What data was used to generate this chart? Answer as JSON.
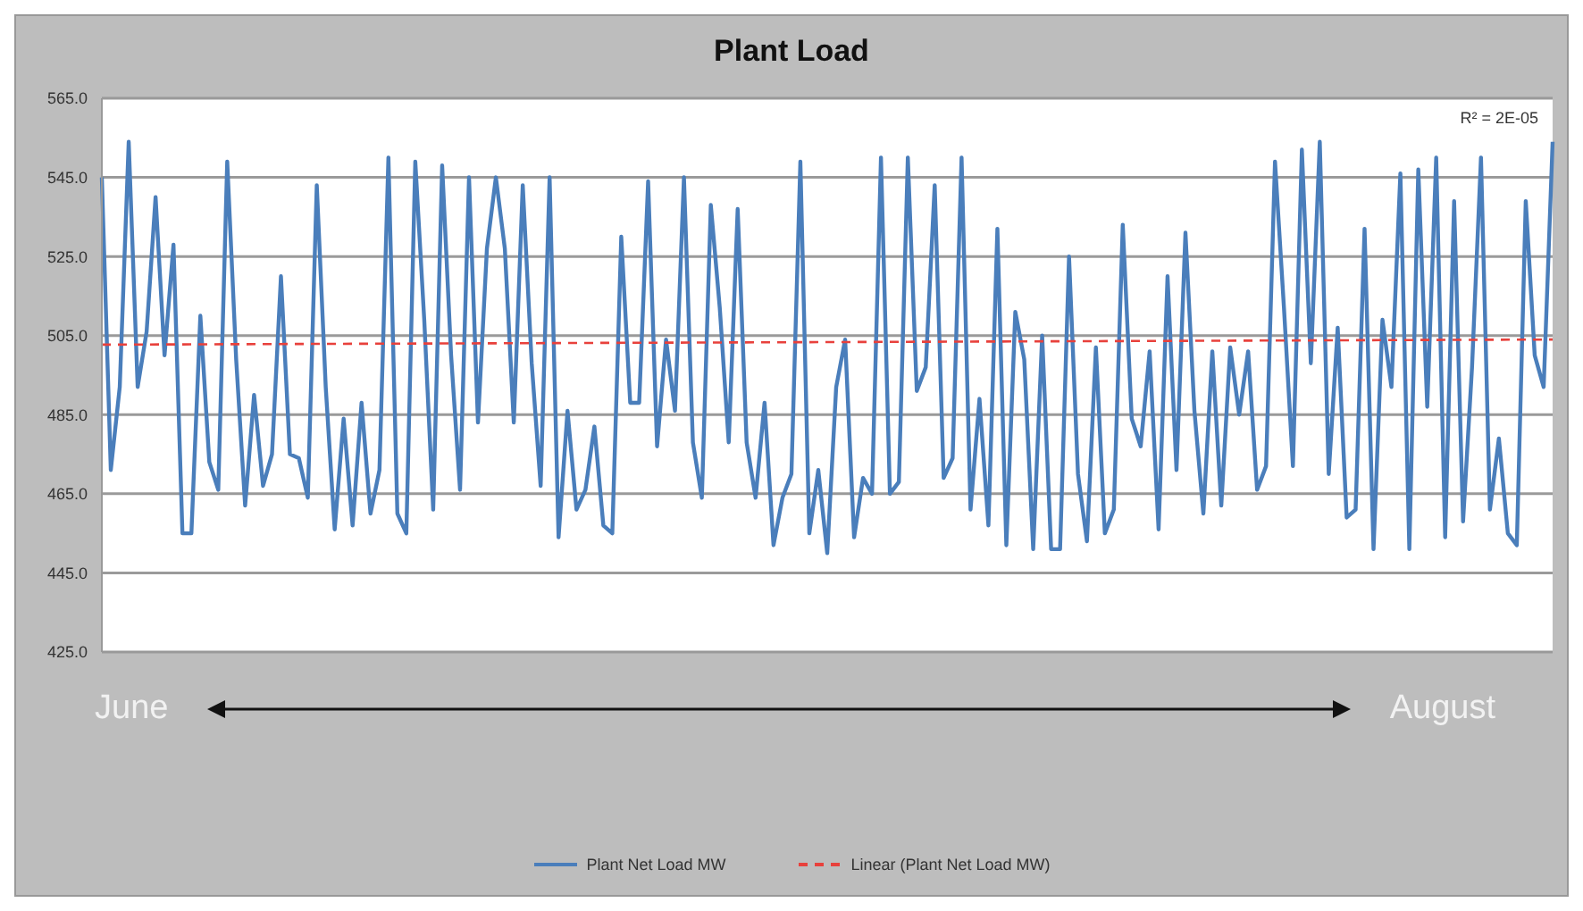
{
  "chart_data": {
    "type": "line",
    "title": "Plant Load",
    "categories": [
      null,
      null,
      null,
      null,
      null,
      null,
      null,
      null,
      null,
      null,
      null,
      null,
      null,
      null,
      null,
      null,
      null,
      null,
      null,
      null,
      null,
      null,
      null,
      null,
      null,
      null,
      null,
      null,
      null,
      null,
      null,
      null,
      null,
      null,
      null,
      null,
      null,
      null,
      null,
      null,
      null,
      null,
      null,
      null,
      null,
      null,
      null,
      null,
      null,
      null,
      null,
      null,
      null,
      null,
      null,
      null,
      null,
      null,
      null,
      null,
      null,
      null,
      null,
      null,
      null,
      null,
      null,
      null,
      null,
      null,
      null,
      null,
      null,
      null,
      null,
      null,
      null,
      null,
      null,
      null,
      null,
      null,
      null,
      null,
      null,
      null,
      null,
      null,
      null,
      null,
      null,
      null,
      null,
      null,
      null,
      null,
      null,
      null,
      null,
      null,
      null,
      null,
      null,
      null,
      null,
      null,
      null,
      null,
      null,
      null,
      null,
      null,
      null,
      null,
      null,
      null,
      null,
      null,
      null,
      null,
      null,
      null,
      null,
      null,
      null,
      null,
      null,
      null,
      null,
      null,
      null,
      null,
      null,
      null,
      null,
      null,
      null,
      null,
      null,
      null,
      null,
      null,
      null,
      null,
      null,
      null,
      null,
      null,
      null,
      null,
      null,
      null,
      null,
      null,
      null,
      null,
      null,
      null,
      null,
      null,
      null,
      null,
      null
    ],
    "series": [
      {
        "name": "Plant Net Load MW",
        "color": "#4a7ebb",
        "values": [
          545,
          471,
          492,
          554,
          492,
          506,
          540,
          500,
          528,
          455,
          455,
          510,
          473,
          466,
          549,
          499,
          462,
          490,
          467,
          475,
          520,
          475,
          474,
          464,
          543,
          492,
          456,
          484,
          457,
          488,
          460,
          471,
          550,
          460,
          455,
          549,
          509,
          461,
          548,
          500,
          466,
          545,
          483,
          527,
          545,
          527,
          483,
          543,
          498,
          467,
          545,
          454,
          486,
          461,
          466,
          482,
          457,
          455,
          530,
          488,
          488,
          544,
          477,
          504,
          486,
          545,
          478,
          464,
          538,
          512,
          478,
          537,
          478,
          464,
          488,
          452,
          464,
          470,
          549,
          455,
          471,
          450,
          492,
          504,
          454,
          469,
          465,
          550,
          465,
          468,
          550,
          491,
          497,
          543,
          469,
          474,
          550,
          461,
          489,
          457,
          532,
          452,
          511,
          499,
          451,
          505,
          451,
          451,
          525,
          470,
          453,
          502,
          455,
          461,
          533,
          484,
          477,
          501,
          456,
          520,
          471,
          531,
          486,
          460,
          501,
          462,
          502,
          485,
          501,
          466,
          472,
          549,
          512,
          472,
          552,
          498,
          554,
          470,
          507,
          459,
          461,
          532,
          451,
          509,
          492,
          546,
          451,
          547,
          487,
          550,
          454,
          539,
          458,
          497,
          550,
          461,
          479,
          455,
          452,
          539,
          500,
          492,
          554
        ]
      },
      {
        "name": "Linear (Plant Net Load MW)",
        "color": "#e8413c",
        "line_style": "dashed",
        "values": [
          502.7,
          null,
          null,
          null,
          null,
          null,
          null,
          null,
          null,
          null,
          null,
          null,
          null,
          null,
          null,
          null,
          null,
          null,
          null,
          null,
          null,
          null,
          null,
          null,
          null,
          null,
          null,
          null,
          null,
          null,
          null,
          null,
          null,
          null,
          null,
          null,
          null,
          null,
          null,
          null,
          null,
          null,
          null,
          null,
          null,
          null,
          null,
          null,
          null,
          null,
          null,
          null,
          null,
          null,
          null,
          null,
          null,
          null,
          null,
          null,
          null,
          null,
          null,
          null,
          null,
          null,
          null,
          null,
          null,
          null,
          null,
          null,
          null,
          null,
          null,
          null,
          null,
          null,
          null,
          null,
          null,
          null,
          null,
          null,
          null,
          null,
          null,
          null,
          null,
          null,
          null,
          null,
          null,
          null,
          null,
          null,
          null,
          null,
          null,
          null,
          null,
          null,
          null,
          null,
          null,
          null,
          null,
          null,
          null,
          null,
          null,
          null,
          null,
          null,
          null,
          null,
          null,
          null,
          null,
          null,
          null,
          null,
          null,
          null,
          null,
          null,
          null,
          null,
          null,
          null,
          null,
          null,
          null,
          null,
          null,
          null,
          null,
          null,
          null,
          null,
          null,
          null,
          null,
          null,
          null,
          null,
          null,
          null,
          null,
          null,
          null,
          null,
          null,
          null,
          null,
          null,
          null,
          null,
          null,
          null,
          null,
          null,
          504
        ]
      }
    ],
    "ylim": [
      425,
      565
    ],
    "yticks": [
      {
        "value": 425,
        "label": "425.0"
      },
      {
        "value": 445,
        "label": "445.0"
      },
      {
        "value": 465,
        "label": "465.0"
      },
      {
        "value": 485,
        "label": "485.0"
      },
      {
        "value": 505,
        "label": "505.0"
      },
      {
        "value": 525,
        "label": "525.0"
      },
      {
        "value": 545,
        "label": "545.0"
      },
      {
        "value": 565,
        "label": "565.0"
      }
    ],
    "grid": "y",
    "legend": "bottom",
    "tick_labels": "y",
    "marker": "none",
    "annotations": [
      "R² = 2E-05",
      "June",
      "August"
    ]
  }
}
